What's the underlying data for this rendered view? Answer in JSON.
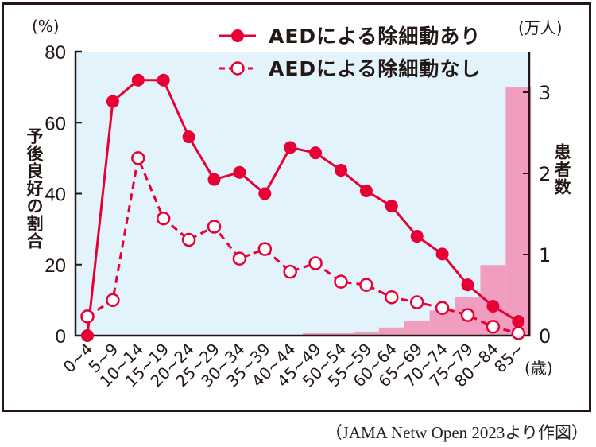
{
  "chart_data": {
    "type": "line+bar",
    "categories": [
      "0~4",
      "5~9",
      "10~14",
      "15~19",
      "20~24",
      "25~29",
      "30~34",
      "35~39",
      "40~44",
      "45~49",
      "50~54",
      "55~59",
      "60~64",
      "65~69",
      "70~74",
      "75~79",
      "80~84",
      "85~"
    ],
    "x_unit": "(歳)",
    "left_axis": {
      "label": "予後良好の割合",
      "unit": "(%)",
      "ylim": [
        0,
        80
      ],
      "ticks": [
        0,
        20,
        40,
        60,
        80
      ]
    },
    "right_axis": {
      "label": "患者数",
      "unit": "(万人)",
      "ylim": [
        0,
        3.5
      ],
      "ticks": [
        0,
        1,
        2,
        3
      ]
    },
    "series": [
      {
        "name": "AEDによる除細動あり",
        "type": "line",
        "style": "solid-filled",
        "axis": "left",
        "color": "#e60033",
        "values": [
          0,
          66,
          72,
          72,
          56,
          44,
          46,
          40,
          53,
          51.5,
          46.6,
          40.8,
          36.5,
          28,
          23,
          14.3,
          8.3,
          4
        ]
      },
      {
        "name": "AEDによる除細動なし",
        "type": "line",
        "style": "dashed-open",
        "axis": "right-none",
        "color": "#e60033",
        "values": [
          5.4,
          10,
          50,
          33,
          27,
          30.7,
          21.7,
          24.4,
          18,
          20.4,
          15.2,
          14.3,
          10.8,
          9.4,
          7.8,
          5.8,
          2.5,
          0.7
        ]
      },
      {
        "type": "bar",
        "axis": "right",
        "color": "#f09dbf",
        "values": [
          0,
          0,
          0,
          0,
          0,
          0,
          0,
          0,
          0.01,
          0.03,
          0.03,
          0.05,
          0.1,
          0.18,
          0.31,
          0.47,
          0.87,
          3.06
        ]
      }
    ],
    "legend_position": "top-right",
    "plot_background": "#e3f3fc",
    "grid": false
  },
  "caption": "（JAMA Netw Open 2023より作図）"
}
